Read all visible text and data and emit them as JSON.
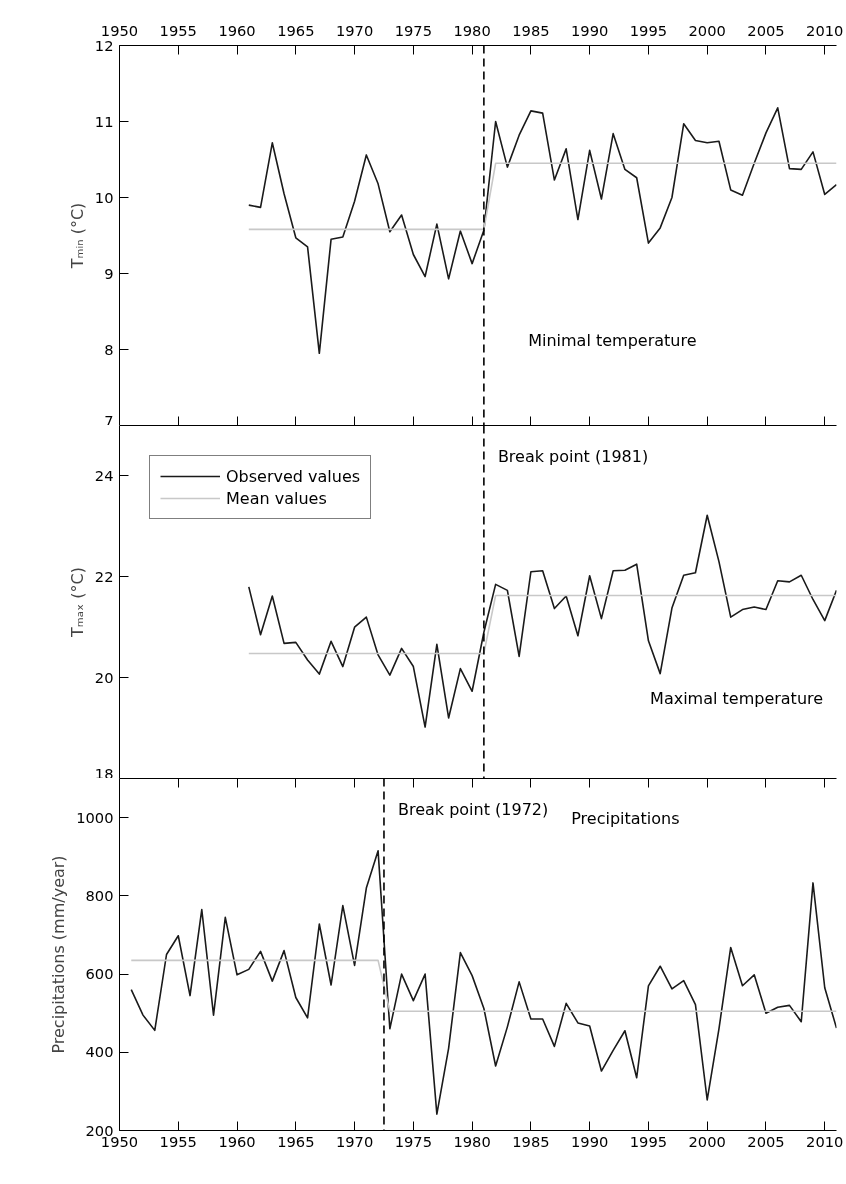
{
  "chart_data": [
    {
      "type": "line",
      "ylabel": "Tₘᵢₙ (°C)",
      "xlim": [
        1950,
        2011
      ],
      "x2lim": [
        1950,
        2011
      ],
      "x2ticks": [
        1950,
        1955,
        1960,
        1965,
        1970,
        1975,
        1980,
        1985,
        1990,
        1995,
        2000,
        2005,
        2010
      ],
      "ylim": [
        7,
        12
      ],
      "yticks": [
        7,
        8,
        9,
        10,
        11,
        12
      ],
      "tick_labels": "y",
      "grid": false,
      "legend": false,
      "annotations": [
        "Minimal temperature"
      ],
      "ref_lines": [
        {
          "axis": "x",
          "value": 1981,
          "label": null,
          "color": "#000000",
          "line_style": "dashed"
        }
      ],
      "series": [
        {
          "color": "#1a1a1a",
          "x": [
            1961,
            1962,
            1963,
            1964,
            1965,
            1966,
            1967,
            1968,
            1969,
            1970,
            1971,
            1972,
            1973,
            1974,
            1975,
            1976,
            1977,
            1978,
            1979,
            1980,
            1981,
            1982,
            1983,
            1984,
            1985,
            1986,
            1987,
            1988,
            1989,
            1990,
            1991,
            1992,
            1993,
            1994,
            1995,
            1996,
            1997,
            1998,
            1999,
            2000,
            2001,
            2002,
            2003,
            2004,
            2005,
            2006,
            2007,
            2008,
            2009,
            2010,
            2011
          ],
          "values": [
            9.9,
            9.87,
            10.72,
            10.05,
            9.47,
            9.35,
            7.95,
            9.45,
            9.48,
            9.95,
            10.56,
            10.18,
            9.55,
            9.77,
            9.25,
            8.96,
            9.65,
            8.93,
            9.56,
            9.13,
            9.57,
            11.0,
            10.4,
            10.82,
            11.14,
            11.11,
            10.23,
            10.64,
            9.71,
            10.62,
            9.98,
            10.84,
            10.37,
            10.26,
            9.4,
            9.6,
            10.0,
            10.97,
            10.75,
            10.72,
            10.74,
            10.1,
            10.03,
            10.45,
            10.85,
            11.18,
            10.38,
            10.37,
            10.6,
            10.04,
            10.17
          ]
        },
        {
          "color": "#c8c8c8",
          "x": [
            1961,
            1981,
            1982,
            2011
          ],
          "values": [
            9.58,
            9.58,
            10.45,
            10.45
          ]
        }
      ]
    },
    {
      "type": "line",
      "ylabel": "Tₘₐₓ (°C)",
      "xlim": [
        1950,
        2011
      ],
      "ylim": [
        18,
        25
      ],
      "yticks": [
        18,
        20,
        22,
        24
      ],
      "tick_labels": "y",
      "grid": false,
      "legend": "top left",
      "annotations": [
        "Maximal temperature"
      ],
      "ref_lines": [
        {
          "axis": "x",
          "value": 1981,
          "label": "Break point (1981)",
          "color": "#000000",
          "line_style": "dashed"
        }
      ],
      "series": [
        {
          "name": "Observed values",
          "color": "#1a1a1a",
          "x": [
            1961,
            1962,
            1963,
            1964,
            1965,
            1966,
            1967,
            1968,
            1969,
            1970,
            1971,
            1972,
            1973,
            1974,
            1975,
            1976,
            1977,
            1978,
            1979,
            1980,
            1981,
            1982,
            1983,
            1984,
            1985,
            1986,
            1987,
            1988,
            1989,
            1990,
            1991,
            1992,
            1993,
            1994,
            1995,
            1996,
            1997,
            1998,
            1999,
            2000,
            2001,
            2002,
            2003,
            2004,
            2005,
            2006,
            2007,
            2008,
            2009,
            2010,
            2011
          ],
          "values": [
            21.8,
            20.85,
            21.62,
            20.68,
            20.7,
            20.35,
            20.07,
            20.72,
            20.22,
            21.0,
            21.2,
            20.45,
            20.05,
            20.58,
            20.22,
            19.02,
            20.66,
            19.2,
            20.18,
            19.73,
            20.9,
            21.85,
            21.73,
            20.42,
            22.1,
            22.12,
            21.37,
            21.62,
            20.83,
            22.02,
            21.17,
            22.12,
            22.13,
            22.25,
            20.73,
            20.08,
            21.38,
            22.03,
            22.08,
            23.22,
            22.3,
            21.2,
            21.35,
            21.4,
            21.35,
            21.92,
            21.9,
            22.03,
            21.55,
            21.13,
            21.73
          ]
        },
        {
          "name": "Mean values",
          "color": "#c8c8c8",
          "x": [
            1961,
            1981,
            1982,
            2011
          ],
          "values": [
            20.48,
            20.48,
            21.63,
            21.63
          ]
        }
      ]
    },
    {
      "type": "line",
      "ylabel": "Precipitations (mm/year)",
      "xlim": [
        1950,
        2011
      ],
      "xticks": [
        1950,
        1955,
        1960,
        1965,
        1970,
        1975,
        1980,
        1985,
        1990,
        1995,
        2000,
        2005,
        2010
      ],
      "ylim": [
        200,
        1100
      ],
      "yticks": [
        200,
        400,
        600,
        800,
        1000
      ],
      "grid": false,
      "legend": false,
      "annotations": [
        "Precipitations"
      ],
      "ref_lines": [
        {
          "axis": "x",
          "value": 1972.5,
          "label": "Break point (1972)",
          "color": "#000000",
          "line_style": "dashed"
        }
      ],
      "series": [
        {
          "color": "#1a1a1a",
          "x": [
            1951,
            1952,
            1953,
            1954,
            1955,
            1956,
            1957,
            1958,
            1959,
            1960,
            1961,
            1962,
            1963,
            1964,
            1965,
            1966,
            1967,
            1968,
            1969,
            1970,
            1971,
            1972,
            1973,
            1974,
            1975,
            1976,
            1977,
            1978,
            1979,
            1980,
            1981,
            1982,
            1983,
            1984,
            1985,
            1986,
            1987,
            1988,
            1989,
            1990,
            1991,
            1992,
            1993,
            1994,
            1995,
            1996,
            1997,
            1998,
            1999,
            2000,
            2001,
            2002,
            2003,
            2004,
            2005,
            2006,
            2007,
            2008,
            2009,
            2010,
            2011
          ],
          "values": [
            560,
            495,
            456,
            650,
            698,
            545,
            765,
            495,
            745,
            598,
            612,
            658,
            582,
            660,
            540,
            488,
            728,
            572,
            775,
            622,
            820,
            915,
            460,
            600,
            532,
            600,
            242,
            410,
            655,
            596,
            512,
            365,
            465,
            580,
            485,
            485,
            415,
            525,
            475,
            467,
            352,
            405,
            455,
            335,
            570,
            620,
            562,
            583,
            522,
            278,
            460,
            668,
            570,
            598,
            500,
            515,
            520,
            478,
            833,
            565,
            462
          ]
        },
        {
          "color": "#c8c8c8",
          "x": [
            1951,
            1972,
            1973,
            2011
          ],
          "values": [
            635,
            635,
            505,
            505
          ]
        }
      ]
    }
  ]
}
